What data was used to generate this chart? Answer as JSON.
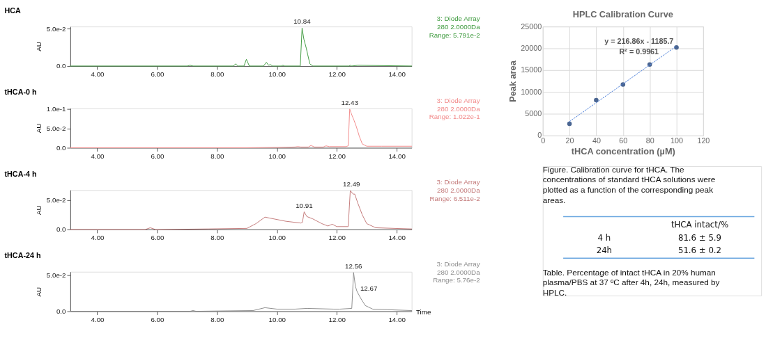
{
  "chart_data": [
    {
      "type": "line",
      "title": "HCA",
      "ylabel": "AU",
      "xlim": [
        3.1,
        14.5
      ],
      "ylim": [
        0,
        0.053
      ],
      "xticks": [
        {
          "value": 4,
          "label": "4.00"
        },
        {
          "value": 6,
          "label": "6.00"
        },
        {
          "value": 8,
          "label": "8.00"
        },
        {
          "value": 10,
          "label": "10.00"
        },
        {
          "value": 12,
          "label": "12.00"
        },
        {
          "value": 14,
          "label": "14.00"
        }
      ],
      "yticks": [
        {
          "value": 0,
          "label": "0.0"
        },
        {
          "value": 0.05,
          "label": "5.0e-2"
        }
      ],
      "x": [
        3.1,
        7.0,
        7.1,
        7.2,
        8.55,
        8.62,
        8.7,
        8.9,
        8.98,
        9.08,
        9.55,
        9.65,
        9.72,
        9.78,
        9.85,
        10.15,
        10.2,
        10.25,
        10.78,
        10.84,
        10.9,
        10.98,
        11.03,
        11.1,
        11.2,
        12.4,
        12.45,
        12.5,
        12.7,
        14.5
      ],
      "series": [
        {
          "color": "#3f9b3f",
          "values": [
            0,
            0,
            0.001,
            0,
            0,
            0.003,
            0,
            0,
            0.009,
            0,
            0,
            0.005,
            0.001,
            0.002,
            0,
            0,
            0.001,
            0,
            0,
            0.051,
            0.036,
            0.024,
            0.015,
            0.003,
            0,
            0,
            0.001,
            0,
            0.001,
            0
          ]
        }
      ],
      "annotations": [
        {
          "text": "10.84",
          "x": 10.84,
          "y": 0.051
        },
        "3: Diode Array",
        "280 2.0000Da",
        "Range: 5.791e-2"
      ]
    },
    {
      "type": "line",
      "title": "tHCA-0 h",
      "ylabel": "AU",
      "xlim": [
        3.1,
        14.5
      ],
      "ylim": [
        0,
        0.102
      ],
      "xticks": [
        {
          "value": 4,
          "label": "4.00"
        },
        {
          "value": 6,
          "label": "6.00"
        },
        {
          "value": 8,
          "label": "8.00"
        },
        {
          "value": 10,
          "label": "10.00"
        },
        {
          "value": 12,
          "label": "12.00"
        },
        {
          "value": 14,
          "label": "14.00"
        }
      ],
      "yticks": [
        {
          "value": 0,
          "label": "0.0"
        },
        {
          "value": 0.05,
          "label": "5.0e-2"
        },
        {
          "value": 0.1,
          "label": "1.0e-1"
        }
      ],
      "x": [
        3.1,
        9.0,
        10.0,
        10.6,
        10.7,
        10.8,
        11.05,
        11.14,
        11.25,
        11.55,
        11.64,
        11.75,
        12.3,
        12.38,
        12.43,
        12.5,
        12.58,
        12.65,
        12.75,
        12.85,
        13.0,
        13.5,
        14.0,
        14.5
      ],
      "series": [
        {
          "color": "#f28a8a",
          "values": [
            0,
            0,
            0.001,
            0.002,
            0.003,
            0.002,
            0.002,
            0.006,
            0.002,
            0.002,
            0.005,
            0.003,
            0.003,
            0.005,
            0.1,
            0.085,
            0.07,
            0.055,
            0.03,
            0.01,
            0.004,
            0.004,
            0.004,
            0.004
          ]
        }
      ],
      "annotations": [
        {
          "text": "12.43",
          "x": 12.43,
          "y": 0.1
        },
        "3: Diode Array",
        "280 2.0000Da",
        "Range: 1.022e-1"
      ]
    },
    {
      "type": "line",
      "title": "tHCA-4 h",
      "ylabel": "AU",
      "xlim": [
        3.1,
        14.5
      ],
      "ylim": [
        0,
        0.067
      ],
      "xticks": [
        {
          "value": 4,
          "label": "4.00"
        },
        {
          "value": 6,
          "label": "6.00"
        },
        {
          "value": 8,
          "label": "8.00"
        },
        {
          "value": 10,
          "label": "10.00"
        },
        {
          "value": 12,
          "label": "12.00"
        },
        {
          "value": 14,
          "label": "14.00"
        }
      ],
      "yticks": [
        {
          "value": 0,
          "label": "0.0"
        },
        {
          "value": 0.05,
          "label": "5.0e-2"
        }
      ],
      "x": [
        3.1,
        5.6,
        5.77,
        5.95,
        7.7,
        9.0,
        9.3,
        9.6,
        9.9,
        10.3,
        10.8,
        10.85,
        10.91,
        11.0,
        11.2,
        11.5,
        11.7,
        11.85,
        12.0,
        12.38,
        12.45,
        12.55,
        12.6,
        12.7,
        12.85,
        13.0,
        13.3,
        14.5
      ],
      "series": [
        {
          "color": "#c47a7a",
          "values": [
            0,
            0,
            0.003,
            0,
            0.001,
            0.002,
            0.01,
            0.021,
            0.018,
            0.014,
            0.011,
            0.012,
            0.03,
            0.022,
            0.018,
            0.01,
            0.006,
            0.009,
            0.005,
            0.005,
            0.066,
            0.06,
            0.06,
            0.045,
            0.025,
            0.01,
            0.003,
            0.001
          ]
        }
      ],
      "annotations": [
        {
          "text": "10.91",
          "x": 10.91,
          "y": 0.03
        },
        {
          "text": "12.49",
          "x": 12.49,
          "y": 0.066
        },
        "3: Diode Array",
        "280 2.0000Da",
        "Range: 6.511e-2"
      ]
    },
    {
      "type": "line",
      "title": "tHCA-24 h",
      "ylabel": "AU",
      "xlabel": "Time",
      "xlim": [
        3.1,
        14.5
      ],
      "ylim": [
        0,
        0.055
      ],
      "xticks": [
        {
          "value": 4,
          "label": "4.00"
        },
        {
          "value": 6,
          "label": "6.00"
        },
        {
          "value": 8,
          "label": "8.00"
        },
        {
          "value": 10,
          "label": "10.00"
        },
        {
          "value": 12,
          "label": "12.00"
        },
        {
          "value": 14,
          "label": "14.00"
        }
      ],
      "yticks": [
        {
          "value": 0,
          "label": "0.0"
        },
        {
          "value": 0.05,
          "label": "5.0e-2"
        }
      ],
      "x": [
        3.1,
        7.1,
        7.2,
        7.3,
        9.2,
        9.6,
        10.0,
        10.6,
        11.0,
        11.9,
        12.1,
        12.5,
        12.56,
        12.62,
        12.67,
        12.8,
        12.95,
        13.2,
        14.5
      ],
      "series": [
        {
          "color": "#8c8c8c",
          "values": [
            0,
            0,
            0.001,
            0,
            0.001,
            0.005,
            0.003,
            0.003,
            0.004,
            0.003,
            0.003,
            0.004,
            0.054,
            0.035,
            0.028,
            0.018,
            0.008,
            0.003,
            0.001
          ]
        }
      ],
      "annotations": [
        {
          "text": "12.56",
          "x": 12.56,
          "y": 0.054
        },
        {
          "text": "12.67",
          "x": 12.67,
          "y": 0.028
        },
        "3: Diode Array",
        "280 2.0000Da",
        "Range: 5.76e-2"
      ]
    },
    {
      "type": "scatter",
      "title": "HPLC Calibration Curve",
      "xlabel": "tHCA concentration (µM)",
      "ylabel": "Peak area",
      "xlim": [
        0,
        120
      ],
      "ylim": [
        0,
        25000
      ],
      "xticks": [
        0,
        20,
        40,
        60,
        80,
        100,
        120
      ],
      "yticks": [
        0,
        5000,
        10000,
        15000,
        20000,
        25000
      ],
      "grid": true,
      "x": [
        20,
        40,
        60,
        80,
        100
      ],
      "series": [
        {
          "color": "#4a6591",
          "marker": "circle",
          "values": [
            2700,
            8100,
            11700,
            16300,
            20200
          ]
        },
        {
          "type": "line",
          "x": [
            20,
            100
          ],
          "values": [
            3200,
            20500
          ],
          "color": "#4f81d9",
          "line_style": "dotted",
          "marker": "none"
        }
      ],
      "annotations": [
        "y = 216.86x - 1185.7",
        "R² = 0.9961"
      ]
    },
    {
      "type": "other",
      "annotations": [
        "Figure. Calibration curve for tHCA. The concentrations of standard tHCA solutions were plotted as a function of the corresponding peak areas.",
        "tHCA intact/%",
        "4 h",
        "81.6 ± 5.9",
        "24h",
        "51.6 ± 0.2",
        "Table. Percentage of intact tHCA in 20% human plasma/PBS at 37 ºC after 4h, 24h, measured by HPLC."
      ]
    }
  ]
}
